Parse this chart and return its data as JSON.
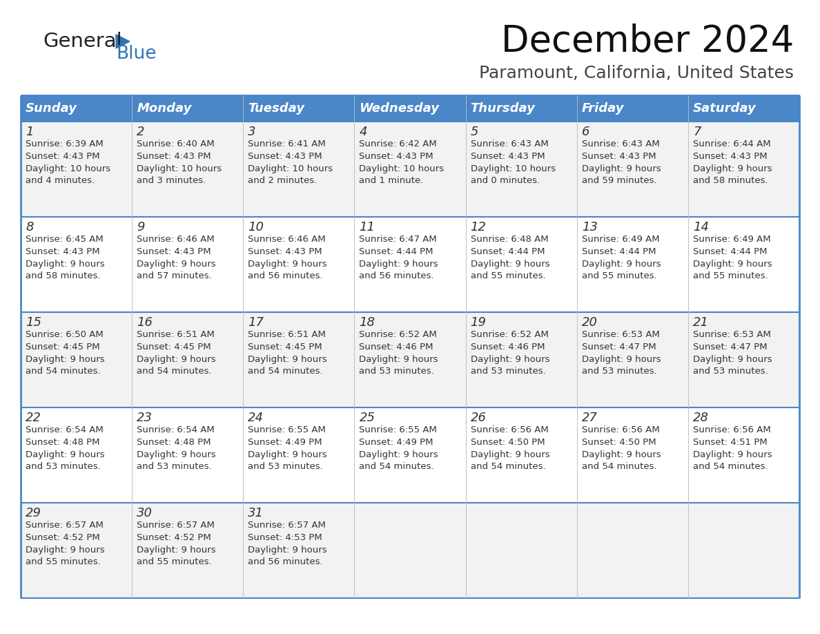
{
  "title": "December 2024",
  "subtitle": "Paramount, California, United States",
  "header_bg": "#4a86c8",
  "header_text_color": "#ffffff",
  "cell_bg_even": "#f2f2f2",
  "cell_bg_odd": "#ffffff",
  "border_color": "#4a86c8",
  "grid_color": "#c0c0c0",
  "text_color": "#333333",
  "days_of_week": [
    "Sunday",
    "Monday",
    "Tuesday",
    "Wednesday",
    "Thursday",
    "Friday",
    "Saturday"
  ],
  "weeks": [
    [
      {
        "day": 1,
        "sunrise": "6:39 AM",
        "sunset": "4:43 PM",
        "daylight_line1": "10 hours",
        "daylight_line2": "and 4 minutes."
      },
      {
        "day": 2,
        "sunrise": "6:40 AM",
        "sunset": "4:43 PM",
        "daylight_line1": "10 hours",
        "daylight_line2": "and 3 minutes."
      },
      {
        "day": 3,
        "sunrise": "6:41 AM",
        "sunset": "4:43 PM",
        "daylight_line1": "10 hours",
        "daylight_line2": "and 2 minutes."
      },
      {
        "day": 4,
        "sunrise": "6:42 AM",
        "sunset": "4:43 PM",
        "daylight_line1": "10 hours",
        "daylight_line2": "and 1 minute."
      },
      {
        "day": 5,
        "sunrise": "6:43 AM",
        "sunset": "4:43 PM",
        "daylight_line1": "10 hours",
        "daylight_line2": "and 0 minutes."
      },
      {
        "day": 6,
        "sunrise": "6:43 AM",
        "sunset": "4:43 PM",
        "daylight_line1": "9 hours",
        "daylight_line2": "and 59 minutes."
      },
      {
        "day": 7,
        "sunrise": "6:44 AM",
        "sunset": "4:43 PM",
        "daylight_line1": "9 hours",
        "daylight_line2": "and 58 minutes."
      }
    ],
    [
      {
        "day": 8,
        "sunrise": "6:45 AM",
        "sunset": "4:43 PM",
        "daylight_line1": "9 hours",
        "daylight_line2": "and 58 minutes."
      },
      {
        "day": 9,
        "sunrise": "6:46 AM",
        "sunset": "4:43 PM",
        "daylight_line1": "9 hours",
        "daylight_line2": "and 57 minutes."
      },
      {
        "day": 10,
        "sunrise": "6:46 AM",
        "sunset": "4:43 PM",
        "daylight_line1": "9 hours",
        "daylight_line2": "and 56 minutes."
      },
      {
        "day": 11,
        "sunrise": "6:47 AM",
        "sunset": "4:44 PM",
        "daylight_line1": "9 hours",
        "daylight_line2": "and 56 minutes."
      },
      {
        "day": 12,
        "sunrise": "6:48 AM",
        "sunset": "4:44 PM",
        "daylight_line1": "9 hours",
        "daylight_line2": "and 55 minutes."
      },
      {
        "day": 13,
        "sunrise": "6:49 AM",
        "sunset": "4:44 PM",
        "daylight_line1": "9 hours",
        "daylight_line2": "and 55 minutes."
      },
      {
        "day": 14,
        "sunrise": "6:49 AM",
        "sunset": "4:44 PM",
        "daylight_line1": "9 hours",
        "daylight_line2": "and 55 minutes."
      }
    ],
    [
      {
        "day": 15,
        "sunrise": "6:50 AM",
        "sunset": "4:45 PM",
        "daylight_line1": "9 hours",
        "daylight_line2": "and 54 minutes."
      },
      {
        "day": 16,
        "sunrise": "6:51 AM",
        "sunset": "4:45 PM",
        "daylight_line1": "9 hours",
        "daylight_line2": "and 54 minutes."
      },
      {
        "day": 17,
        "sunrise": "6:51 AM",
        "sunset": "4:45 PM",
        "daylight_line1": "9 hours",
        "daylight_line2": "and 54 minutes."
      },
      {
        "day": 18,
        "sunrise": "6:52 AM",
        "sunset": "4:46 PM",
        "daylight_line1": "9 hours",
        "daylight_line2": "and 53 minutes."
      },
      {
        "day": 19,
        "sunrise": "6:52 AM",
        "sunset": "4:46 PM",
        "daylight_line1": "9 hours",
        "daylight_line2": "and 53 minutes."
      },
      {
        "day": 20,
        "sunrise": "6:53 AM",
        "sunset": "4:47 PM",
        "daylight_line1": "9 hours",
        "daylight_line2": "and 53 minutes."
      },
      {
        "day": 21,
        "sunrise": "6:53 AM",
        "sunset": "4:47 PM",
        "daylight_line1": "9 hours",
        "daylight_line2": "and 53 minutes."
      }
    ],
    [
      {
        "day": 22,
        "sunrise": "6:54 AM",
        "sunset": "4:48 PM",
        "daylight_line1": "9 hours",
        "daylight_line2": "and 53 minutes."
      },
      {
        "day": 23,
        "sunrise": "6:54 AM",
        "sunset": "4:48 PM",
        "daylight_line1": "9 hours",
        "daylight_line2": "and 53 minutes."
      },
      {
        "day": 24,
        "sunrise": "6:55 AM",
        "sunset": "4:49 PM",
        "daylight_line1": "9 hours",
        "daylight_line2": "and 53 minutes."
      },
      {
        "day": 25,
        "sunrise": "6:55 AM",
        "sunset": "4:49 PM",
        "daylight_line1": "9 hours",
        "daylight_line2": "and 54 minutes."
      },
      {
        "day": 26,
        "sunrise": "6:56 AM",
        "sunset": "4:50 PM",
        "daylight_line1": "9 hours",
        "daylight_line2": "and 54 minutes."
      },
      {
        "day": 27,
        "sunrise": "6:56 AM",
        "sunset": "4:50 PM",
        "daylight_line1": "9 hours",
        "daylight_line2": "and 54 minutes."
      },
      {
        "day": 28,
        "sunrise": "6:56 AM",
        "sunset": "4:51 PM",
        "daylight_line1": "9 hours",
        "daylight_line2": "and 54 minutes."
      }
    ],
    [
      {
        "day": 29,
        "sunrise": "6:57 AM",
        "sunset": "4:52 PM",
        "daylight_line1": "9 hours",
        "daylight_line2": "and 55 minutes."
      },
      {
        "day": 30,
        "sunrise": "6:57 AM",
        "sunset": "4:52 PM",
        "daylight_line1": "9 hours",
        "daylight_line2": "and 55 minutes."
      },
      {
        "day": 31,
        "sunrise": "6:57 AM",
        "sunset": "4:53 PM",
        "daylight_line1": "9 hours",
        "daylight_line2": "and 56 minutes."
      },
      null,
      null,
      null,
      null
    ]
  ],
  "logo_general_color": "#222222",
  "logo_blue_color": "#2e75b6",
  "title_fontsize": 38,
  "subtitle_fontsize": 18,
  "header_fontsize": 13,
  "day_num_fontsize": 13,
  "cell_text_fontsize": 9.5
}
